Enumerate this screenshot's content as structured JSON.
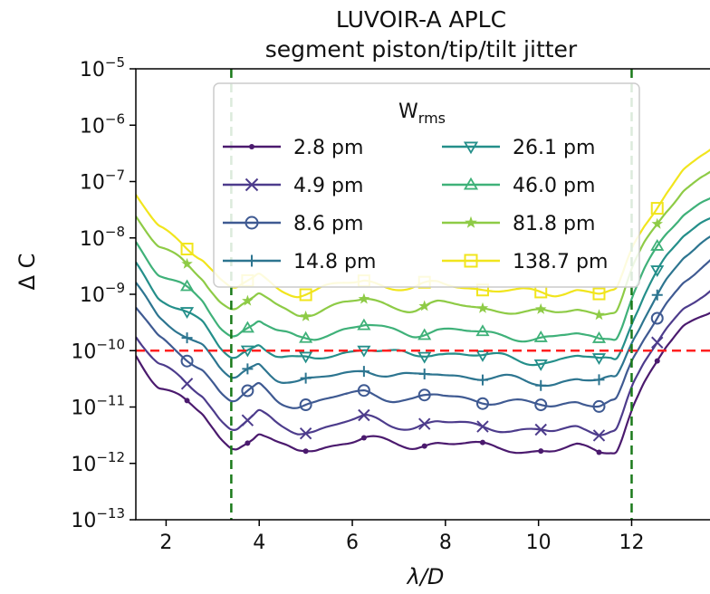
{
  "chart_data": {
    "type": "line",
    "title": "LUVOIR-A APLC",
    "subtitle": "segment piston/tip/tilt jitter",
    "xlabel": "λ/D",
    "ylabel": "Δ C",
    "xlim": [
      1.35,
      13.8
    ],
    "ylim_log10": [
      -13,
      -5
    ],
    "y_scale": "log",
    "x_ticks": [
      2,
      4,
      6,
      8,
      10,
      12
    ],
    "y_ticks": [
      {
        "base": "10",
        "exp": "−5",
        "value": -5
      },
      {
        "base": "10",
        "exp": "−6",
        "value": -6
      },
      {
        "base": "10",
        "exp": "−7",
        "value": -7
      },
      {
        "base": "10",
        "exp": "−8",
        "value": -8
      },
      {
        "base": "10",
        "exp": "−9",
        "value": -9
      },
      {
        "base": "10",
        "exp": "−10",
        "value": -10
      },
      {
        "base": "10",
        "exp": "−11",
        "value": -11
      },
      {
        "base": "10",
        "exp": "−12",
        "value": -12
      },
      {
        "base": "10",
        "exp": "−13",
        "value": -13
      }
    ],
    "legend": {
      "title": "W",
      "title_sub": "rms",
      "position": "top-center",
      "columns": 2
    },
    "reference_lines": [
      {
        "orientation": "horizontal",
        "value_log10": -10,
        "color": "#ff2020",
        "style": "dashed"
      },
      {
        "orientation": "vertical",
        "value": 3.4,
        "color": "#1a7a1a",
        "style": "dashed"
      },
      {
        "orientation": "vertical",
        "value": 12.0,
        "color": "#1a7a1a",
        "style": "dashed"
      }
    ],
    "series": [
      {
        "name": "2.8 pm",
        "color": "#4b1a6e",
        "marker": "dot",
        "offset": 0.0
      },
      {
        "name": "4.9 pm",
        "color": "#4d3c8c",
        "marker": "x",
        "offset": 0.35
      },
      {
        "name": "8.6 pm",
        "color": "#3f5a92",
        "marker": "circle",
        "offset": 0.82
      },
      {
        "name": "14.8 pm",
        "color": "#2d7590",
        "marker": "plus",
        "offset": 1.22
      },
      {
        "name": "26.1 pm",
        "color": "#248f8a",
        "marker": "triangle-down",
        "offset": 1.6
      },
      {
        "name": "46.0 pm",
        "color": "#3fb179",
        "marker": "triangle-up",
        "offset": 2.0
      },
      {
        "name": "81.8 pm",
        "color": "#8ecb46",
        "marker": "star",
        "offset": 2.45
      },
      {
        "name": "138.7 pm",
        "color": "#f1e51d",
        "marker": "square",
        "offset": 2.8
      }
    ],
    "base_curve_log10": {
      "x": [
        1.35,
        1.8,
        2.3,
        2.8,
        3.2,
        3.45,
        3.7,
        4.0,
        4.4,
        4.8,
        5.2,
        5.8,
        6.3,
        6.8,
        7.3,
        7.8,
        8.3,
        8.8,
        9.3,
        9.8,
        10.3,
        10.8,
        11.3,
        11.7,
        12.0,
        12.3,
        12.7,
        13.1,
        13.5,
        13.8
      ],
      "y": [
        -10.05,
        -10.6,
        -10.85,
        -11.15,
        -11.6,
        -11.75,
        -11.6,
        -11.45,
        -11.7,
        -11.78,
        -11.75,
        -11.62,
        -11.55,
        -11.65,
        -11.7,
        -11.62,
        -11.65,
        -11.7,
        -11.72,
        -11.78,
        -11.8,
        -11.7,
        -11.78,
        -11.72,
        -11.05,
        -10.55,
        -10.0,
        -9.6,
        -9.35,
        -9.2
      ]
    }
  }
}
